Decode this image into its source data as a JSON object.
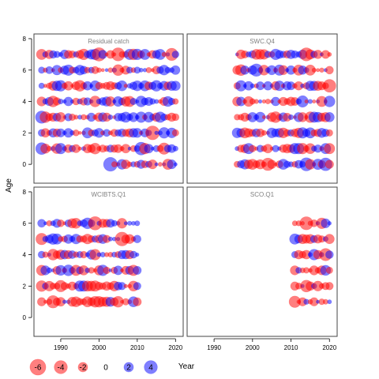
{
  "chart_data": {
    "type": "scatter",
    "subtype": "bubble",
    "ylabel": "Age",
    "xlabel": "Year",
    "xlim": [
      1983,
      2022
    ],
    "ylim": [
      -1.2,
      8.3
    ],
    "x_ticks": [
      1990,
      2000,
      2010,
      2020
    ],
    "y_ticks": [
      0,
      2,
      4,
      6,
      8
    ],
    "colors": {
      "positive": "#0000ff",
      "negative": "#ff0000",
      "alpha": 0.5
    },
    "legend": {
      "placement": "bottom-left",
      "entries": [
        {
          "label": "-6",
          "value": -6
        },
        {
          "label": "-4",
          "value": -4
        },
        {
          "label": "-2",
          "value": -2
        },
        {
          "label": "0",
          "value": 0
        },
        {
          "label": "2",
          "value": 2
        },
        {
          "label": "4",
          "value": 4
        }
      ]
    },
    "panels": [
      {
        "title": "Residual catch",
        "years": [
          1985,
          2020
        ],
        "ages": [
          0,
          1,
          2,
          3,
          4,
          5,
          6,
          7
        ],
        "seed": 11,
        "ages_start": {
          "0": 2003
        },
        "big_points": [
          {
            "year": 2003,
            "age": 0,
            "value": 4.5
          },
          {
            "year": 2014,
            "age": 2,
            "value": -4.5
          },
          {
            "year": 2000,
            "age": 7,
            "value": -4.2
          },
          {
            "year": 2005,
            "age": 7,
            "value": -4.0
          },
          {
            "year": 2019,
            "age": 7,
            "value": -3.5
          },
          {
            "year": 1985,
            "age": 3,
            "value": 3.5
          },
          {
            "year": 2011,
            "age": 1,
            "value": 3.8
          },
          {
            "year": 2017,
            "age": 1,
            "value": -3.0
          },
          {
            "year": 1985,
            "age": 1,
            "value": 3.2
          }
        ]
      },
      {
        "title": "SWC.Q4",
        "years": [
          1996,
          2020
        ],
        "ages": [
          0,
          1,
          2,
          3,
          4,
          5,
          6,
          7
        ],
        "seed": 23,
        "ages_start": {},
        "big_points": [
          {
            "year": 2014,
            "age": 0,
            "value": 4.0
          },
          {
            "year": 2019,
            "age": 0,
            "value": 3.8
          },
          {
            "year": 2004,
            "age": 0,
            "value": -3.6
          },
          {
            "year": 2014,
            "age": 7,
            "value": -4.0
          },
          {
            "year": 2020,
            "age": 5,
            "value": -3.8
          },
          {
            "year": 2001,
            "age": 6,
            "value": 3.6
          },
          {
            "year": 2013,
            "age": 4,
            "value": 3.0
          }
        ]
      },
      {
        "title": "WCIBTS.Q1",
        "years": [
          1985,
          2010
        ],
        "ages": [
          1,
          2,
          3,
          4,
          5,
          6
        ],
        "seed": 37,
        "ages_start": {},
        "big_points": [
          {
            "year": 1999,
            "age": 6,
            "value": -4.2
          },
          {
            "year": 2006,
            "age": 5,
            "value": -4.5
          },
          {
            "year": 1985,
            "age": 5,
            "value": -3.0
          },
          {
            "year": 1988,
            "age": 1,
            "value": -3.6
          },
          {
            "year": 1990,
            "age": 2,
            "value": -3.0
          }
        ]
      },
      {
        "title": "SCO.Q1",
        "years": [
          2011,
          2020
        ],
        "ages": [
          1,
          2,
          3,
          4,
          5,
          6
        ],
        "seed": 53,
        "ages_start": {},
        "big_points": [
          {
            "year": 2014,
            "age": 6,
            "value": -4.0
          },
          {
            "year": 2019,
            "age": 4,
            "value": -3.5
          },
          {
            "year": 2011,
            "age": 1,
            "value": -3.0
          },
          {
            "year": 2014,
            "age": 2,
            "value": -3.2
          }
        ]
      }
    ]
  }
}
